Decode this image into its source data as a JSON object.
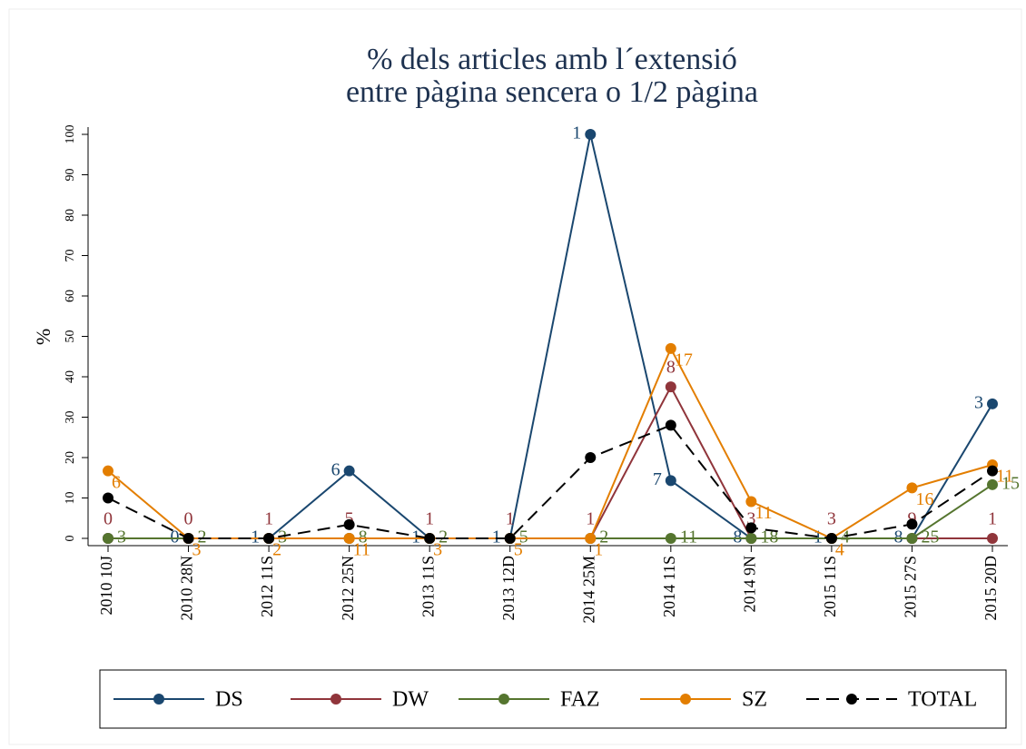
{
  "chart_data": {
    "type": "line",
    "title": [
      "% dels articles amb l´extensió",
      "entre pàgina sencera o 1/2 pàgina"
    ],
    "y_label": "%",
    "categories": [
      "2010 10J",
      "2010 28N",
      "2012 11S",
      "2012 25N",
      "2013 11S",
      "2013 12D",
      "2014 25M",
      "2014 11S",
      "2014 9N",
      "2015 11S",
      "2015 27S",
      "2015 20D"
    ],
    "ylim": [
      0,
      100
    ],
    "yticks": [
      0,
      10,
      20,
      30,
      40,
      50,
      60,
      70,
      80,
      90,
      100
    ],
    "series": [
      {
        "name": "DS",
        "color": "#1a476f",
        "dash": false,
        "label_pos": "left",
        "values": [
          0,
          0,
          0,
          16.7,
          0,
          0,
          100,
          14.3,
          0,
          0,
          0,
          33.3
        ],
        "point_labels": [
          null,
          0,
          1,
          6,
          1,
          1,
          1,
          7,
          8,
          1,
          8,
          3
        ]
      },
      {
        "name": "DW",
        "color": "#90353b",
        "dash": false,
        "label_pos": "top",
        "values": [
          0,
          0,
          0,
          0,
          0,
          0,
          0,
          37.5,
          0,
          0,
          0,
          0
        ],
        "point_labels": [
          0,
          0,
          1,
          5,
          1,
          1,
          1,
          8,
          3,
          3,
          9,
          1
        ]
      },
      {
        "name": "FAZ",
        "color": "#55752f",
        "dash": false,
        "label_pos": "right",
        "values": [
          0,
          0,
          0,
          0,
          0,
          0,
          0,
          0,
          0,
          0,
          0,
          13.3
        ],
        "point_labels": [
          3,
          2,
          3,
          8,
          2,
          5,
          2,
          11,
          18,
          4,
          25,
          15
        ]
      },
      {
        "name": "SZ",
        "color": "#e37e00",
        "dash": false,
        "label_pos": "bottom-right",
        "values": [
          16.7,
          0,
          0,
          0,
          0,
          0,
          0,
          47,
          9.1,
          0,
          12.5,
          18.2
        ],
        "point_labels": [
          6,
          3,
          2,
          11,
          3,
          5,
          1,
          17,
          11,
          4,
          16,
          11
        ]
      },
      {
        "name": "TOTAL",
        "color": "#000000",
        "dash": true,
        "label_pos": null,
        "values": [
          10,
          0,
          0,
          3.4,
          0,
          0,
          20,
          28,
          2.6,
          0,
          3.5,
          16.7
        ]
      }
    ]
  }
}
